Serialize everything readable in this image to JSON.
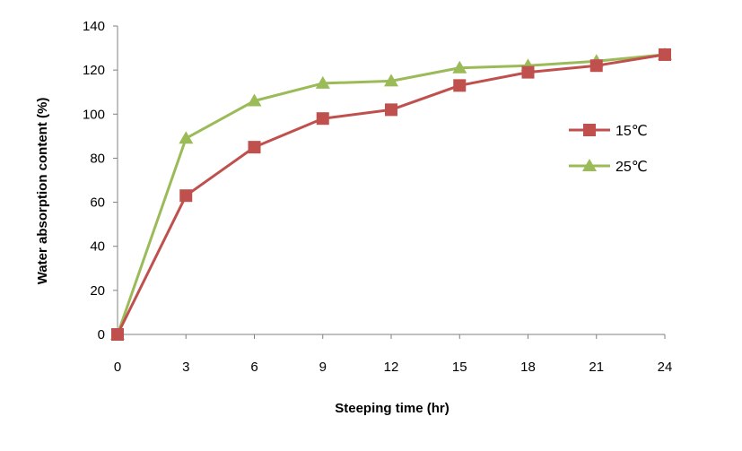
{
  "chart_data": {
    "type": "line",
    "title": "",
    "xlabel": "Steeping time (hr)",
    "ylabel": "Water absorption content (%)",
    "x": [
      0,
      3,
      6,
      9,
      12,
      15,
      18,
      21,
      24
    ],
    "xticks": [
      "0",
      "3",
      "6",
      "9",
      "12",
      "15",
      "18",
      "21",
      "24"
    ],
    "yticks": [
      "0",
      "20",
      "40",
      "60",
      "80",
      "100",
      "120",
      "140"
    ],
    "xlim": [
      0,
      24
    ],
    "ylim": [
      0,
      140
    ],
    "grid": false,
    "legend_position": "right",
    "series": [
      {
        "name": "15℃",
        "marker": "square",
        "color": "#c0504d",
        "values": [
          0,
          63,
          85,
          98,
          102,
          113,
          119,
          122,
          127
        ]
      },
      {
        "name": "25℃",
        "marker": "triangle",
        "color": "#9bbb59",
        "values": [
          0,
          89,
          106,
          114,
          115,
          121,
          122,
          124,
          127
        ]
      }
    ]
  }
}
